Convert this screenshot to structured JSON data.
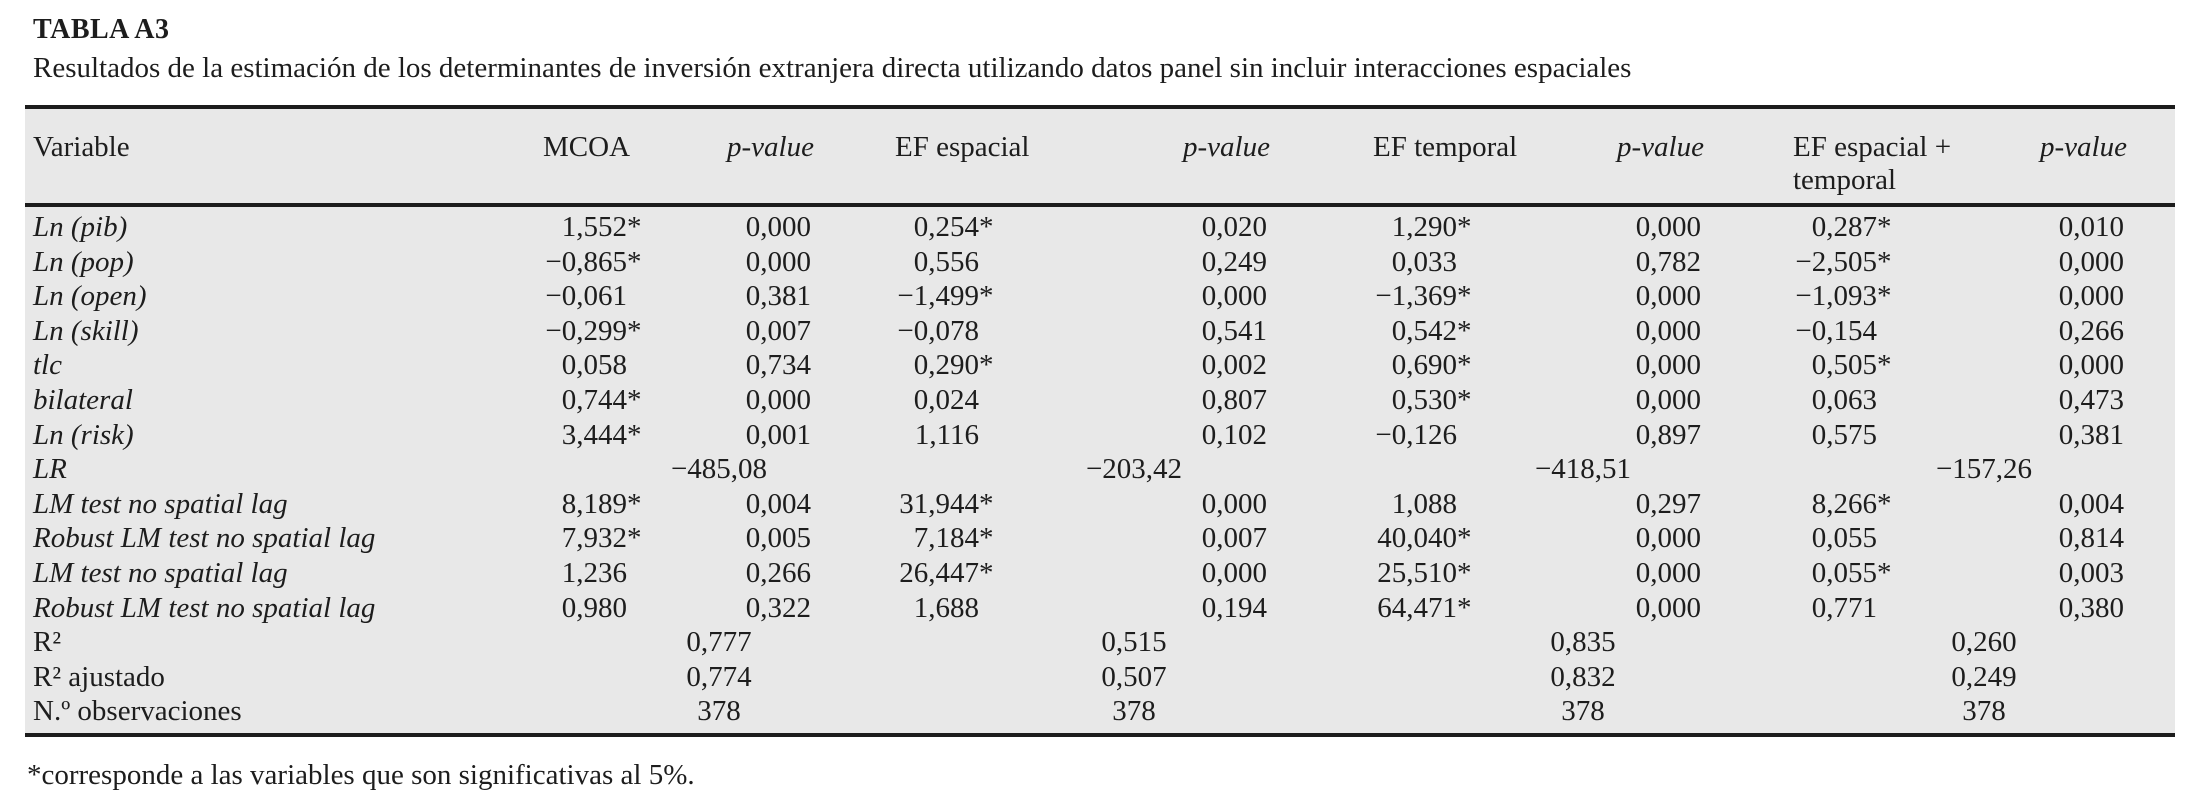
{
  "paper": {
    "table_label": "TABLA A3",
    "table_caption": "Resultados de la estimación de los determinantes de inversión extranjera directa utilizando datos panel sin incluir interacciones espaciales",
    "footnote": "*corresponde a las variables que son significativas al 5%."
  },
  "colors": {
    "table_background": "#e8e8e8",
    "rule": "#1c1c1c",
    "text": "#1d1d1d",
    "page_background": "#ffffff"
  },
  "table": {
    "columns": [
      "Variable",
      "MCOA",
      "p-value",
      "EF espacial",
      "p-value",
      "EF temporal",
      "p-value",
      "EF espacial + temporal",
      "p-value"
    ],
    "significance_marker": "*",
    "rows": [
      {
        "label": "Ln (pib)",
        "italic": true,
        "cells": [
          {
            "v": "1,552*"
          },
          {
            "v": "0,000"
          },
          {
            "v": "0,254*"
          },
          {
            "v": "0,020"
          },
          {
            "v": "1,290*"
          },
          {
            "v": "0,000"
          },
          {
            "v": "0,287*"
          },
          {
            "v": "0,010"
          }
        ]
      },
      {
        "label": "Ln (pop)",
        "italic": true,
        "cells": [
          {
            "v": "−0,865*"
          },
          {
            "v": "0,000"
          },
          {
            "v": "0,556"
          },
          {
            "v": "0,249"
          },
          {
            "v": "0,033"
          },
          {
            "v": "0,782"
          },
          {
            "v": "−2,505*"
          },
          {
            "v": "0,000"
          }
        ]
      },
      {
        "label": "Ln (open)",
        "italic": true,
        "cells": [
          {
            "v": "−0,061"
          },
          {
            "v": "0,381"
          },
          {
            "v": "−1,499*"
          },
          {
            "v": "0,000"
          },
          {
            "v": "−1,369*"
          },
          {
            "v": "0,000"
          },
          {
            "v": "−1,093*"
          },
          {
            "v": "0,000"
          }
        ]
      },
      {
        "label": "Ln (skill)",
        "italic": true,
        "cells": [
          {
            "v": "−0,299*"
          },
          {
            "v": "0,007"
          },
          {
            "v": "−0,078"
          },
          {
            "v": "0,541"
          },
          {
            "v": "0,542*"
          },
          {
            "v": "0,000"
          },
          {
            "v": "−0,154"
          },
          {
            "v": "0,266"
          }
        ]
      },
      {
        "label": "tlc",
        "italic": true,
        "cells": [
          {
            "v": "0,058"
          },
          {
            "v": "0,734"
          },
          {
            "v": "0,290*"
          },
          {
            "v": "0,002"
          },
          {
            "v": "0,690*"
          },
          {
            "v": "0,000"
          },
          {
            "v": "0,505*"
          },
          {
            "v": "0,000"
          }
        ]
      },
      {
        "label": "bilateral",
        "italic": true,
        "cells": [
          {
            "v": "0,744*"
          },
          {
            "v": "0,000"
          },
          {
            "v": "0,024"
          },
          {
            "v": "0,807"
          },
          {
            "v": "0,530*"
          },
          {
            "v": "0,000"
          },
          {
            "v": "0,063"
          },
          {
            "v": "0,473"
          }
        ]
      },
      {
        "label": "Ln (risk)",
        "italic": true,
        "cells": [
          {
            "v": "3,444*"
          },
          {
            "v": "0,001"
          },
          {
            "v": "1,116"
          },
          {
            "v": "0,102"
          },
          {
            "v": "−0,126"
          },
          {
            "v": "0,897"
          },
          {
            "v": "0,575"
          },
          {
            "v": "0,381"
          }
        ]
      },
      {
        "label": "LR",
        "italic": true,
        "cells": [
          {
            "v": "−485,08",
            "span": 2
          },
          {
            "v": "−203,42",
            "span": 2
          },
          {
            "v": "−418,51",
            "span": 2
          },
          {
            "v": "−157,26",
            "span": 2
          }
        ]
      },
      {
        "label": "LM test no spatial lag",
        "italic": true,
        "cells": [
          {
            "v": "8,189*"
          },
          {
            "v": "0,004"
          },
          {
            "v": "31,944*"
          },
          {
            "v": "0,000"
          },
          {
            "v": "1,088"
          },
          {
            "v": "0,297"
          },
          {
            "v": "8,266*"
          },
          {
            "v": "0,004"
          }
        ]
      },
      {
        "label": "Robust LM test no spatial lag",
        "italic": true,
        "cells": [
          {
            "v": "7,932*"
          },
          {
            "v": "0,005"
          },
          {
            "v": "7,184*"
          },
          {
            "v": "0,007"
          },
          {
            "v": "40,040*"
          },
          {
            "v": "0,000"
          },
          {
            "v": "0,055"
          },
          {
            "v": "0,814"
          }
        ]
      },
      {
        "label": "LM test no spatial lag",
        "italic": true,
        "cells": [
          {
            "v": "1,236"
          },
          {
            "v": "0,266"
          },
          {
            "v": "26,447*"
          },
          {
            "v": "0,000"
          },
          {
            "v": "25,510*"
          },
          {
            "v": "0,000"
          },
          {
            "v": "0,055*"
          },
          {
            "v": "0,003"
          }
        ]
      },
      {
        "label": "Robust LM test no spatial lag",
        "italic": true,
        "cells": [
          {
            "v": "0,980"
          },
          {
            "v": "0,322"
          },
          {
            "v": "1,688"
          },
          {
            "v": "0,194"
          },
          {
            "v": "64,471*"
          },
          {
            "v": "0,000"
          },
          {
            "v": "0,771"
          },
          {
            "v": "0,380"
          }
        ]
      },
      {
        "label": "R²",
        "italic": false,
        "cells": [
          {
            "v": "0,777",
            "span": 2
          },
          {
            "v": "0,515",
            "span": 2
          },
          {
            "v": "0,835",
            "span": 2
          },
          {
            "v": "0,260",
            "span": 2
          }
        ]
      },
      {
        "label": "R² ajustado",
        "italic": false,
        "cells": [
          {
            "v": "0,774",
            "span": 2
          },
          {
            "v": "0,507",
            "span": 2
          },
          {
            "v": "0,832",
            "span": 2
          },
          {
            "v": "0,249",
            "span": 2
          }
        ]
      },
      {
        "label": "N.º observaciones",
        "italic": false,
        "cells": [
          {
            "v": "378",
            "span": 2
          },
          {
            "v": "378",
            "span": 2
          },
          {
            "v": "378",
            "span": 2
          },
          {
            "v": "378",
            "span": 2
          }
        ]
      }
    ]
  }
}
